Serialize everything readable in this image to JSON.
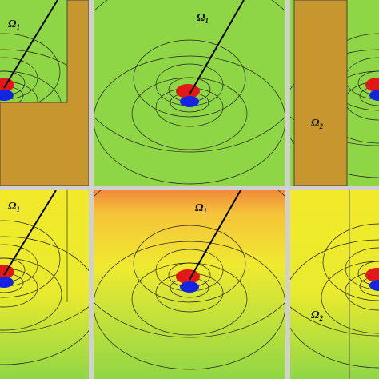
{
  "panels": [
    {
      "label": {
        "symbol": "Ω",
        "subscript": "1"
      }
    },
    {
      "label": {
        "symbol": "Ω",
        "subscript": "1"
      }
    },
    {
      "label": {
        "symbol": "Ω",
        "subscript": "2"
      }
    },
    {
      "label": {
        "symbol": "Ω",
        "subscript": "1"
      }
    },
    {
      "label": {
        "symbol": "Ω",
        "subscript": "1"
      }
    },
    {
      "label": {
        "symbol": "Ω",
        "subscript": "2"
      }
    }
  ]
}
